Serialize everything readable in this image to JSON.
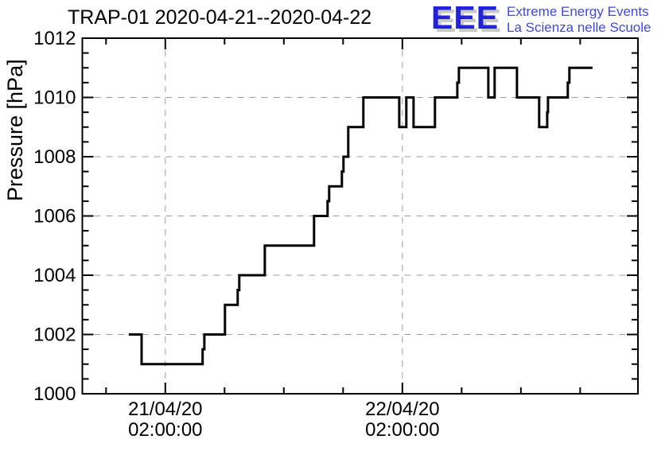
{
  "page": {
    "background": "#ffffff"
  },
  "header": {
    "title": "TRAP-01 2020-04-21--2020-04-22",
    "logo": {
      "acronym": "EEE",
      "line1": "Extreme Energy Events",
      "line2": "La Scienza nelle Scuole",
      "acronym_color": "#2222dd",
      "text_color": "#4149e0",
      "shadow_color": "#c8c8c8"
    }
  },
  "chart_data": {
    "type": "line",
    "subtype": "step",
    "title": "TRAP-01 2020-04-21--2020-04-22",
    "xlabel": "",
    "ylabel": "Pressure [hPa]",
    "ylim": [
      1000,
      1012
    ],
    "xlim_hours": [
      -8.4,
      47.85
    ],
    "x_reference": "hours relative to 21/04/20 02:00:00",
    "y_major_ticks": [
      1000,
      1002,
      1004,
      1006,
      1008,
      1010,
      1012
    ],
    "y_minor_step": 0.5,
    "x_minor_step_hours": 6,
    "x_major_ticks": [
      {
        "hours": 0,
        "label_line1": "21/04/20",
        "label_line2": "02:00:00"
      },
      {
        "hours": 24,
        "label_line1": "22/04/20",
        "label_line2": "02:00:00"
      }
    ],
    "grid": {
      "show": true,
      "style": "dashed",
      "color": "#9c9c9c"
    },
    "line_color": "#000000",
    "line_width": 3,
    "steps": [
      {
        "from": -3.7,
        "to": -2.4,
        "hpa": 1002
      },
      {
        "from": -2.4,
        "to": 3.78,
        "hpa": 1001
      },
      {
        "from": 3.78,
        "to": 3.95,
        "hpa": 1001.5
      },
      {
        "from": 3.95,
        "to": 6.04,
        "hpa": 1002
      },
      {
        "from": 6.04,
        "to": 7.33,
        "hpa": 1003
      },
      {
        "from": 7.33,
        "to": 7.49,
        "hpa": 1003.5
      },
      {
        "from": 7.49,
        "to": 10.07,
        "hpa": 1004
      },
      {
        "from": 10.07,
        "to": 15.06,
        "hpa": 1005
      },
      {
        "from": 15.06,
        "to": 16.43,
        "hpa": 1006
      },
      {
        "from": 16.43,
        "to": 16.59,
        "hpa": 1006.5
      },
      {
        "from": 16.59,
        "to": 17.88,
        "hpa": 1007
      },
      {
        "from": 17.88,
        "to": 18.04,
        "hpa": 1007.5
      },
      {
        "from": 18.04,
        "to": 18.52,
        "hpa": 1008
      },
      {
        "from": 18.52,
        "to": 20.05,
        "hpa": 1009
      },
      {
        "from": 20.05,
        "to": 23.68,
        "hpa": 1010
      },
      {
        "from": 23.68,
        "to": 24.4,
        "hpa": 1009
      },
      {
        "from": 24.4,
        "to": 25.13,
        "hpa": 1010
      },
      {
        "from": 25.13,
        "to": 27.3,
        "hpa": 1009
      },
      {
        "from": 27.3,
        "to": 29.56,
        "hpa": 1010
      },
      {
        "from": 29.56,
        "to": 29.72,
        "hpa": 1010.5
      },
      {
        "from": 29.72,
        "to": 32.7,
        "hpa": 1011
      },
      {
        "from": 32.7,
        "to": 33.34,
        "hpa": 1010
      },
      {
        "from": 33.34,
        "to": 35.6,
        "hpa": 1011
      },
      {
        "from": 35.6,
        "to": 37.85,
        "hpa": 1010
      },
      {
        "from": 37.85,
        "to": 38.66,
        "hpa": 1009
      },
      {
        "from": 38.66,
        "to": 38.74,
        "hpa": 1009.5
      },
      {
        "from": 38.74,
        "to": 40.75,
        "hpa": 1010
      },
      {
        "from": 40.75,
        "to": 40.91,
        "hpa": 1010.5
      },
      {
        "from": 40.91,
        "to": 43.25,
        "hpa": 1011
      }
    ]
  }
}
